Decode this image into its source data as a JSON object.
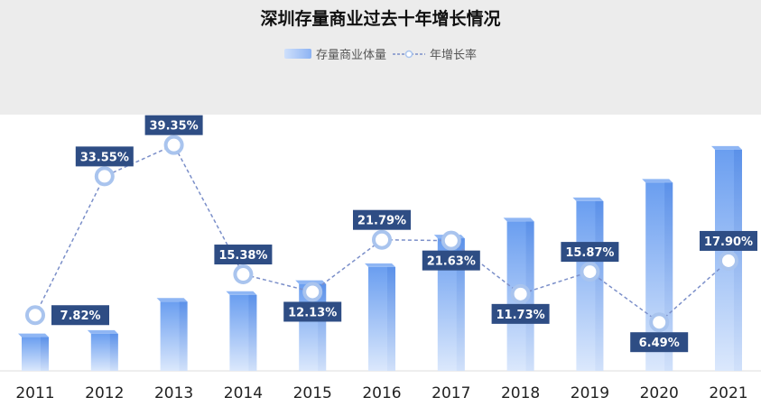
{
  "chart_data": {
    "type": "bar",
    "title": "深圳存量商业过去十年增长情况",
    "legend": [
      "存量商业体量",
      "年增长率"
    ],
    "categories": [
      "2011",
      "2012",
      "2013",
      "2014",
      "2015",
      "2016",
      "2017",
      "2018",
      "2019",
      "2020",
      "2021"
    ],
    "series": [
      {
        "name": "存量商业体量",
        "type": "bar",
        "values": [
          40,
          44,
          82,
          90,
          103,
          123,
          157,
          177,
          201,
          223,
          262
        ]
      },
      {
        "name": "年增长率",
        "type": "line",
        "unit": "%",
        "values": [
          7.82,
          33.55,
          39.35,
          15.38,
          12.13,
          21.79,
          21.63,
          11.73,
          15.87,
          6.49,
          17.9
        ],
        "labels": [
          "7.82%",
          "33.55%",
          "39.35%",
          "15.38%",
          "12.13%",
          "21.79%",
          "21.63%",
          "11.73%",
          "15.87%",
          "6.49%",
          "17.90%"
        ]
      }
    ],
    "grid": false,
    "legend_position": "top-center",
    "colors": {
      "bar_top": "#6a9ef0",
      "bar_bottom": "#dbe8fc",
      "line": "#7b8fc9",
      "marker_fill": "#ffffff",
      "marker_stroke": "#a9c4ee",
      "label_bg": "#2e4d84",
      "plot_bg": "#ffffff"
    }
  }
}
